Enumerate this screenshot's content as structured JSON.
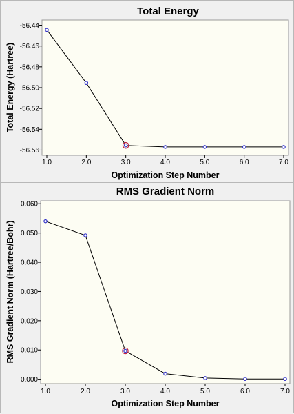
{
  "chart_data": [
    {
      "type": "line",
      "title": "Total Energy",
      "xlabel": "Optimization Step Number",
      "ylabel": "Total Energy (Hartree)",
      "x": [
        1,
        2,
        3,
        4,
        5,
        6,
        7
      ],
      "values": [
        -56.4445,
        -56.4955,
        -56.5555,
        -56.557,
        -56.557,
        -56.557,
        -56.557
      ],
      "highlight_index": 2,
      "xlim": [
        1.0,
        7.0
      ],
      "ylim": [
        -56.565,
        -56.435
      ],
      "xticks": [
        "1.0",
        "2.0",
        "3.0",
        "4.0",
        "5.0",
        "6.0",
        "7.0"
      ],
      "yticks": [
        "-56.44",
        "-56.46",
        "-56.48",
        "-56.50",
        "-56.52",
        "-56.54",
        "-56.56"
      ],
      "grid": false,
      "marker_color": "#3434c8",
      "highlight_color": "#c02040"
    },
    {
      "type": "line",
      "title": "RMS Gradient Norm",
      "xlabel": "Optimization Step Number",
      "ylabel": "RMS Gradient Norm (Hartree/Bohr)",
      "x": [
        1,
        2,
        3,
        4,
        5,
        6,
        7
      ],
      "values": [
        0.054,
        0.0492,
        0.0097,
        0.0019,
        0.0004,
        0.0001,
        0.0001
      ],
      "highlight_index": 2,
      "xlim": [
        1.0,
        7.0
      ],
      "ylim": [
        -0.0015,
        0.061
      ],
      "xticks": [
        "1.0",
        "2.0",
        "3.0",
        "4.0",
        "5.0",
        "6.0",
        "7.0"
      ],
      "yticks": [
        "0.060",
        "0.050",
        "0.040",
        "0.030",
        "0.020",
        "0.010",
        "0.000"
      ],
      "grid": false,
      "marker_color": "#3434c8",
      "highlight_color": "#c02040"
    }
  ]
}
